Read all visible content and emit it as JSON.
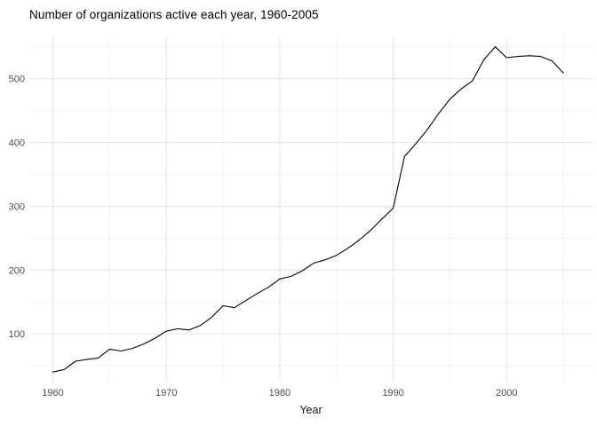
{
  "chart_data": {
    "type": "line",
    "title": "Number of organizations active each year, 1960-2005",
    "xlabel": "Year",
    "ylabel": "",
    "x": [
      1960,
      1961,
      1962,
      1963,
      1964,
      1965,
      1966,
      1967,
      1968,
      1969,
      1970,
      1971,
      1972,
      1973,
      1974,
      1975,
      1976,
      1977,
      1978,
      1979,
      1980,
      1981,
      1982,
      1983,
      1984,
      1985,
      1986,
      1987,
      1988,
      1989,
      1990,
      1991,
      1992,
      1993,
      1994,
      1995,
      1996,
      1997,
      1998,
      1999,
      2000,
      2001,
      2002,
      2003,
      2004,
      2005
    ],
    "y": [
      40,
      44,
      57,
      60,
      62,
      76,
      73,
      77,
      84,
      93,
      104,
      108,
      106,
      113,
      126,
      144,
      141,
      152,
      163,
      173,
      186,
      190,
      199,
      211,
      216,
      223,
      234,
      247,
      262,
      280,
      297,
      378,
      398,
      420,
      445,
      468,
      484,
      497,
      530,
      550,
      533,
      535,
      536,
      535,
      528,
      509
    ],
    "x_ticks": [
      1960,
      1970,
      1980,
      1990,
      2000
    ],
    "y_ticks": [
      100,
      200,
      300,
      400,
      500
    ],
    "x_minor_ticks": [
      1965,
      1975,
      1985,
      1995,
      2005
    ],
    "y_minor_ticks": [
      50,
      150,
      250,
      350,
      450,
      550
    ],
    "xlim": [
      1958,
      2007.5
    ],
    "ylim": [
      25,
      565
    ],
    "grid": true,
    "legend": "none",
    "line_color": "#000000",
    "grid_major_color": "#e4e4e4",
    "grid_minor_color": "#f2f2f2",
    "background_color": "#ffffff"
  }
}
